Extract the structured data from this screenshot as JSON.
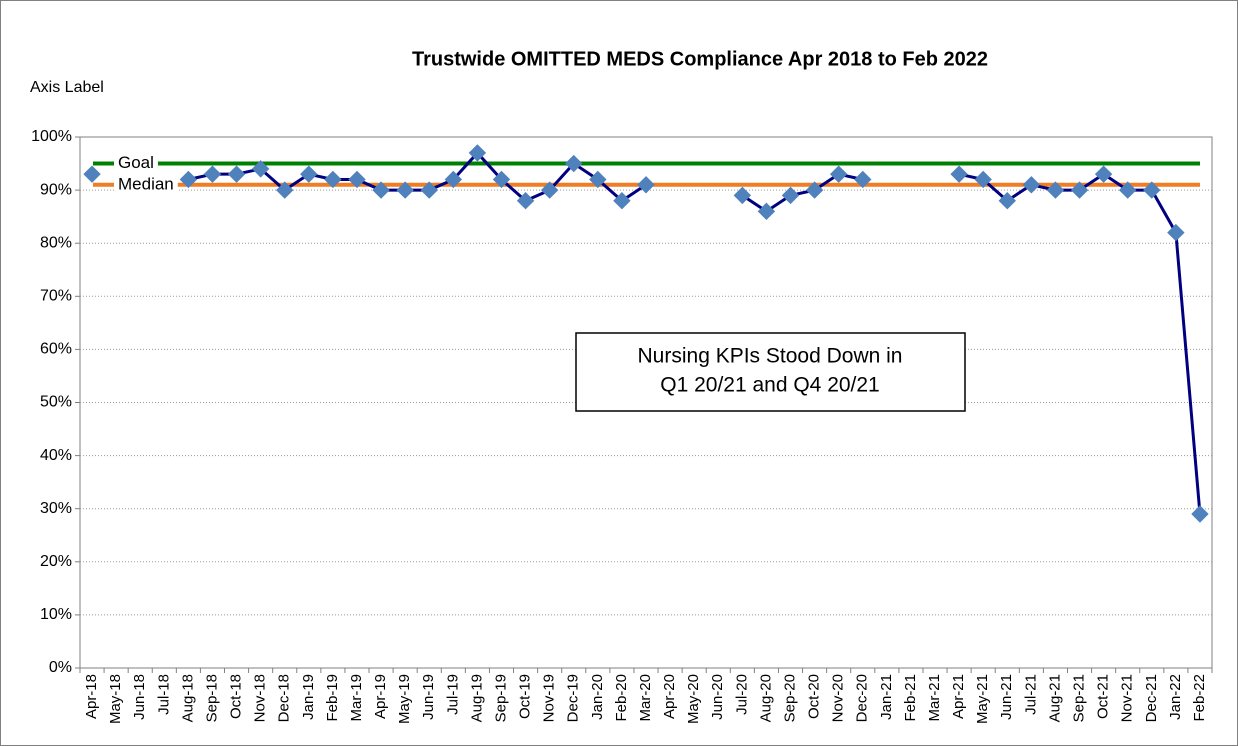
{
  "chart_data": {
    "type": "line",
    "title": "Trustwide OMITTED MEDS Compliance Apr 2018 to Feb 2022",
    "y_axis_label": "Axis Label",
    "annotation": [
      "Nursing KPIs Stood Down in",
      "Q1 20/21 and Q4 20/21"
    ],
    "categories": [
      "Apr-18",
      "May-18",
      "Jun-18",
      "Jul-18",
      "Aug-18",
      "Sep-18",
      "Oct-18",
      "Nov-18",
      "Dec-18",
      "Jan-19",
      "Feb-19",
      "Mar-19",
      "Apr-19",
      "May-19",
      "Jun-19",
      "Jul-19",
      "Aug-19",
      "Sep-19",
      "Oct-19",
      "Nov-19",
      "Dec-19",
      "Jan-20",
      "Feb-20",
      "Mar-20",
      "Apr-20",
      "May-20",
      "Jun-20",
      "Jul-20",
      "Aug-20",
      "Sep-20",
      "Oct-20",
      "Nov-20",
      "Dec-20",
      "Jan-21",
      "Feb-21",
      "Mar-21",
      "Apr-21",
      "May-21",
      "Jun-21",
      "Jul-21",
      "Aug-21",
      "Sep-21",
      "Oct-21",
      "Nov-21",
      "Dec-21",
      "Jan-22",
      "Feb-22"
    ],
    "series": [
      {
        "color": "#000080",
        "marker_color": "#4f81bd",
        "values": [
          93,
          null,
          null,
          null,
          92,
          93,
          93,
          94,
          90,
          93,
          92,
          92,
          90,
          90,
          90,
          92,
          97,
          92,
          88,
          90,
          95,
          92,
          88,
          91,
          null,
          null,
          null,
          89,
          86,
          89,
          90,
          93,
          92,
          null,
          null,
          null,
          93,
          92,
          88,
          91,
          90,
          90,
          93,
          90,
          90,
          82,
          29
        ]
      }
    ],
    "reference_lines": [
      {
        "name": "Goal",
        "value": 95,
        "color": "#008000",
        "label_color": "#008000"
      },
      {
        "name": "Median",
        "value": 91,
        "color": "#f07c24",
        "label_color": "#ff0000"
      }
    ],
    "ylim": [
      0,
      100
    ],
    "yticks": [
      {
        "value": 0,
        "label": "0%"
      },
      {
        "value": 10,
        "label": "10%"
      },
      {
        "value": 20,
        "label": "20%"
      },
      {
        "value": 30,
        "label": "30%"
      },
      {
        "value": 40,
        "label": "40%"
      },
      {
        "value": 50,
        "label": "50%"
      },
      {
        "value": 60,
        "label": "60%"
      },
      {
        "value": 70,
        "label": "70%"
      },
      {
        "value": 80,
        "label": "80%"
      },
      {
        "value": 90,
        "label": "90%"
      },
      {
        "value": 100,
        "label": "100%"
      }
    ],
    "grid": true
  }
}
